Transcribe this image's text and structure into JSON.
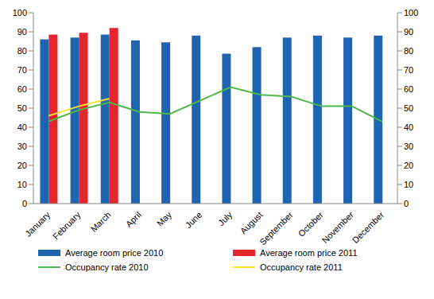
{
  "chart_data": {
    "type": "bar",
    "categories": [
      "January",
      "February",
      "March",
      "April",
      "May",
      "June",
      "July",
      "August",
      "September",
      "October",
      "November",
      "December"
    ],
    "series": [
      {
        "name": "Average room price 2010",
        "type": "bar",
        "axis": "y",
        "color": "#1f64b0",
        "values": [
          86,
          87,
          88.5,
          85.5,
          84.5,
          88,
          78.5,
          82,
          87,
          88,
          87,
          88
        ]
      },
      {
        "name": "Average room price 2011",
        "type": "bar",
        "axis": "y",
        "color": "#e3262b",
        "values": [
          88.5,
          89.5,
          92,
          null,
          null,
          null,
          null,
          null,
          null,
          null,
          null,
          null
        ]
      },
      {
        "name": "Occupancy rate 2010",
        "type": "line",
        "axis": "y2",
        "color": "#4db848",
        "values": [
          43,
          49,
          53,
          48,
          47,
          54,
          61,
          57,
          56,
          51,
          51,
          43
        ]
      },
      {
        "name": "Occupancy rate 2011",
        "type": "line",
        "axis": "y2",
        "color": "#f2e530",
        "values": [
          46,
          51,
          55,
          null,
          null,
          null,
          null,
          null,
          null,
          null,
          null,
          null
        ]
      }
    ],
    "ylim": [
      0,
      100
    ],
    "yticks": [
      0,
      10,
      20,
      30,
      40,
      50,
      60,
      70,
      80,
      90,
      100
    ],
    "y2lim": [
      0,
      100
    ],
    "y2ticks": [
      0,
      10,
      20,
      30,
      40,
      50,
      60,
      70,
      80,
      90,
      100
    ],
    "grid": false,
    "legend": "bottom"
  }
}
